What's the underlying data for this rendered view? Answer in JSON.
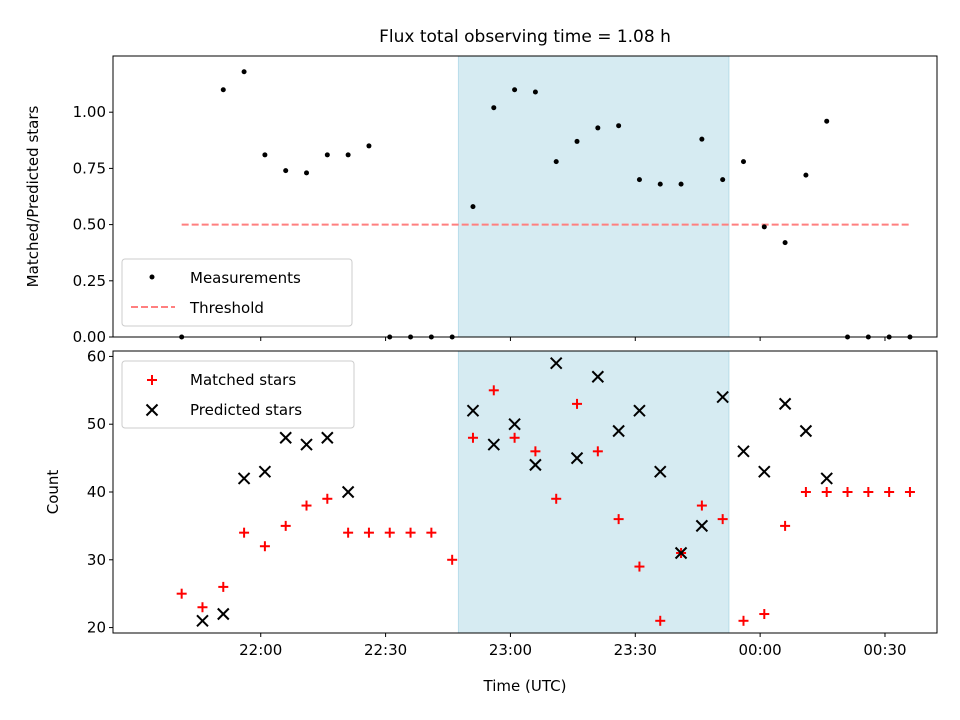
{
  "chart_data": [
    {
      "type": "scatter",
      "title": "Flux total observing time = 1.08 h",
      "xlabel": "",
      "ylabel": "Matched/Predicted stars",
      "ylim": [
        0,
        1.25
      ],
      "yticks": [
        "0.00",
        "0.25",
        "0.50",
        "0.75",
        "1.00"
      ],
      "xlim_minutes": [
        1284.5,
        1482.5
      ],
      "shaded_span_minutes": [
        1367.5,
        1432.5
      ],
      "shaded_color": "#add8e6",
      "legend_position": "lower left",
      "series": [
        {
          "name": "Measurements",
          "marker": "dot",
          "color": "#000000",
          "x": [
            "21:41",
            "21:51",
            "21:56",
            "22:01",
            "22:06",
            "22:11",
            "22:16",
            "22:21",
            "22:26",
            "22:31",
            "22:36",
            "22:41",
            "22:46",
            "22:51",
            "22:56",
            "23:01",
            "23:06",
            "23:11",
            "23:16",
            "23:21",
            "23:26",
            "23:31",
            "23:36",
            "23:41",
            "23:46",
            "23:51",
            "23:56",
            "00:01",
            "00:06",
            "00:11",
            "00:16",
            "00:21",
            "00:26",
            "00:31",
            "00:36"
          ],
          "y": [
            0.0,
            1.1,
            1.18,
            0.81,
            0.74,
            0.73,
            0.81,
            0.81,
            0.85,
            0.0,
            0.0,
            0.0,
            0.0,
            0.58,
            1.02,
            1.1,
            1.09,
            0.78,
            0.87,
            0.93,
            0.94,
            0.7,
            0.68,
            0.68,
            0.88,
            0.7,
            0.78,
            0.49,
            0.42,
            0.72,
            0.96,
            0.0,
            0.0,
            0.0,
            0.0
          ]
        },
        {
          "name": "Threshold",
          "marker": "dashed-line",
          "color": "#ff7f7f",
          "x": [
            "21:41",
            "00:36"
          ],
          "y": [
            0.5,
            0.5
          ]
        }
      ]
    },
    {
      "type": "scatter",
      "title": "",
      "xlabel": "Time (UTC)",
      "ylabel": "Count",
      "ylim": [
        19.2,
        60.8
      ],
      "yticks": [
        "20",
        "30",
        "40",
        "50",
        "60"
      ],
      "xticks": [
        "22:00",
        "22:30",
        "23:00",
        "23:30",
        "00:00",
        "00:30"
      ],
      "xlim_minutes": [
        1284.5,
        1482.5
      ],
      "shaded_span_minutes": [
        1367.5,
        1432.5
      ],
      "shaded_color": "#add8e6",
      "legend_position": "upper left",
      "series": [
        {
          "name": "Matched stars",
          "marker": "plus",
          "color": "#ff0000",
          "x": [
            "21:41",
            "21:46",
            "21:51",
            "21:56",
            "22:01",
            "22:06",
            "22:11",
            "22:16",
            "22:21",
            "22:26",
            "22:31",
            "22:36",
            "22:41",
            "22:46",
            "22:51",
            "22:56",
            "23:01",
            "23:06",
            "23:11",
            "23:16",
            "23:21",
            "23:26",
            "23:31",
            "23:36",
            "23:41",
            "23:46",
            "23:51",
            "23:56",
            "00:01",
            "00:06",
            "00:11",
            "00:16",
            "00:21",
            "00:26",
            "00:31",
            "00:36"
          ],
          "y": [
            25,
            23,
            26,
            34,
            32,
            35,
            38,
            39,
            34,
            34,
            34,
            34,
            34,
            30,
            48,
            55,
            48,
            46,
            39,
            53,
            46,
            36,
            29,
            21,
            31,
            38,
            36,
            21,
            22,
            35,
            40,
            40,
            40,
            40,
            40,
            40
          ]
        },
        {
          "name": "Predicted stars",
          "marker": "x",
          "color": "#000000",
          "x": [
            "21:46",
            "21:51",
            "21:56",
            "22:01",
            "22:06",
            "22:11",
            "22:16",
            "22:21",
            "22:51",
            "22:56",
            "23:01",
            "23:06",
            "23:11",
            "23:16",
            "23:21",
            "23:26",
            "23:31",
            "23:36",
            "23:41",
            "23:46",
            "23:51",
            "23:56",
            "00:01",
            "00:06",
            "00:11",
            "00:16"
          ],
          "y": [
            21,
            22,
            42,
            43,
            48,
            47,
            48,
            40,
            52,
            47,
            50,
            44,
            59,
            45,
            57,
            49,
            52,
            43,
            31,
            35,
            54,
            46,
            43,
            53,
            49,
            42
          ]
        }
      ]
    }
  ]
}
